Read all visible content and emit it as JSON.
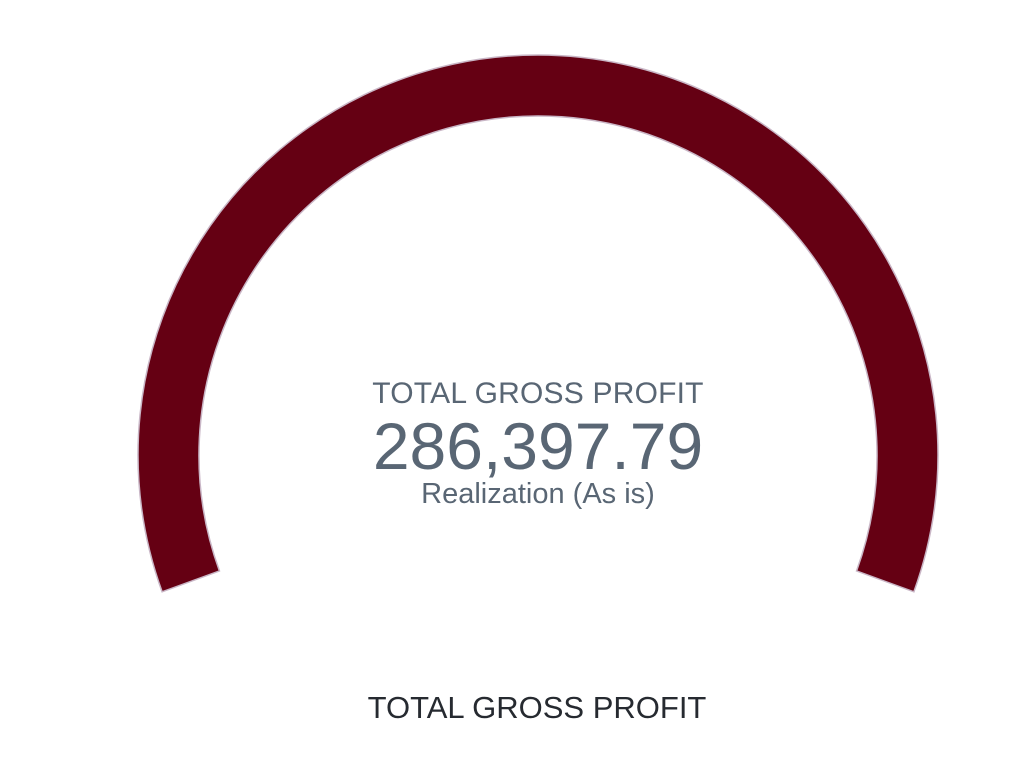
{
  "chart_data": {
    "type": "gauge",
    "title": "TOTAL GROSS PROFIT",
    "value": 286397.79,
    "value_label": "286,397.79",
    "sublabel": "Realization (As is)",
    "fill_fraction": 1.0,
    "color": "#650013",
    "outline_color": "#c9b6c6"
  },
  "caption": "TOTAL GROSS PROFIT"
}
